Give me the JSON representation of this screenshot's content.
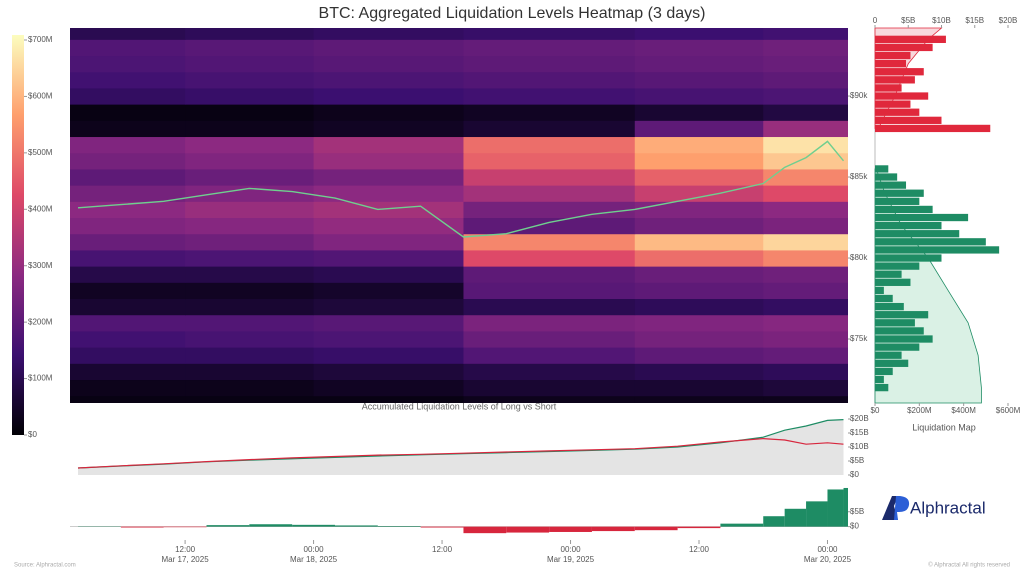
{
  "chart_data": [
    {
      "type": "heatmap",
      "title": "BTC: Aggregated Liquidation Levels Heatmap (3 days)",
      "x": [
        "2025-03-17T01:15",
        "2025-03-17T12:00",
        "2025-03-18T00:00",
        "2025-03-18T14:00",
        "2025-03-19T06:00",
        "2025-03-19T18:00"
      ],
      "xlim": [
        "2025-03-17T01:15",
        "2025-03-20T01:55"
      ],
      "y": [
        71000,
        72000,
        73000,
        74000,
        75000,
        76000,
        77000,
        78000,
        79000,
        80000,
        81000,
        82000,
        83000,
        84000,
        85000,
        86000,
        87000,
        88000,
        89000,
        90000,
        91000,
        92000,
        93000,
        94000
      ],
      "ylim": [
        71050,
        94200
      ],
      "yticks": [
        {
          "value": 75000,
          "label": "$75k"
        },
        {
          "value": 80000,
          "label": "$80k"
        },
        {
          "value": 85000,
          "label": "$85k"
        },
        {
          "value": 90000,
          "label": "$90k"
        }
      ],
      "z": [
        [
          20,
          20,
          20,
          30,
          30,
          30
        ],
        [
          30,
          30,
          40,
          60,
          60,
          70
        ],
        [
          60,
          60,
          70,
          90,
          100,
          110
        ],
        [
          120,
          120,
          130,
          180,
          200,
          210
        ],
        [
          150,
          160,
          170,
          220,
          240,
          250
        ],
        [
          180,
          180,
          190,
          250,
          260,
          270
        ],
        [
          60,
          60,
          70,
          100,
          110,
          120
        ],
        [
          40,
          40,
          50,
          190,
          200,
          210
        ],
        [
          90,
          90,
          100,
          200,
          220,
          230
        ],
        [
          160,
          170,
          180,
          420,
          480,
          520
        ],
        [
          220,
          230,
          260,
          520,
          600,
          640
        ],
        [
          260,
          270,
          290,
          200,
          230,
          250
        ],
        [
          280,
          300,
          320,
          240,
          260,
          280
        ],
        [
          240,
          260,
          280,
          320,
          380,
          420
        ],
        [
          200,
          220,
          240,
          380,
          460,
          520
        ],
        [
          240,
          260,
          300,
          460,
          560,
          620
        ],
        [
          260,
          280,
          320,
          480,
          580,
          660
        ],
        [
          30,
          30,
          40,
          60,
          200,
          300
        ],
        [
          20,
          20,
          30,
          40,
          60,
          80
        ],
        [
          120,
          130,
          140,
          150,
          160,
          170
        ],
        [
          150,
          160,
          170,
          180,
          190,
          200
        ],
        [
          170,
          180,
          190,
          200,
          210,
          220
        ],
        [
          180,
          190,
          200,
          210,
          220,
          230
        ],
        [
          100,
          110,
          120,
          130,
          140,
          150
        ]
      ],
      "zlim": [
        0,
        700
      ],
      "zticks": [
        {
          "value": 0,
          "label": "$0"
        },
        {
          "value": 100,
          "label": "$100M"
        },
        {
          "value": 200,
          "label": "$200M"
        },
        {
          "value": 300,
          "label": "$300M"
        },
        {
          "value": 400,
          "label": "$400M"
        },
        {
          "value": 500,
          "label": "$500M"
        },
        {
          "value": 600,
          "label": "$600M"
        },
        {
          "value": 700,
          "label": "$700M"
        }
      ],
      "colorscale": [
        "#000004",
        "#3b0f70",
        "#8c2981",
        "#de4968",
        "#fe9f6d",
        "#fcfdbf"
      ],
      "line": {
        "color": "#6fcf8f",
        "x": [
          "2025-03-17T02:00",
          "2025-03-17T06:00",
          "2025-03-17T10:00",
          "2025-03-17T14:00",
          "2025-03-17T18:00",
          "2025-03-17T22:00",
          "2025-03-18T02:00",
          "2025-03-18T06:00",
          "2025-03-18T10:00",
          "2025-03-18T14:00",
          "2025-03-18T18:00",
          "2025-03-18T22:00",
          "2025-03-19T02:00",
          "2025-03-19T06:00",
          "2025-03-19T10:00",
          "2025-03-19T14:00",
          "2025-03-19T18:00",
          "2025-03-19T20:00",
          "2025-03-19T22:00",
          "2025-03-20T00:00",
          "2025-03-20T01:30"
        ],
        "values": [
          83100,
          83300,
          83500,
          83900,
          84300,
          84100,
          83700,
          83000,
          83200,
          81300,
          81500,
          82200,
          82700,
          83000,
          83500,
          84000,
          84600,
          85600,
          86200,
          87200,
          86000
        ]
      }
    },
    {
      "type": "bar",
      "orientation": "horizontal",
      "title": "Liquidation Map",
      "ylim": [
        71050,
        94200
      ],
      "xlim": [
        0,
        600
      ],
      "xticks": [
        {
          "value": 0,
          "label": "$0"
        },
        {
          "value": 200,
          "label": "$200M"
        },
        {
          "value": 400,
          "label": "$400M"
        },
        {
          "value": 600,
          "label": "$600M"
        }
      ],
      "x2lim": [
        0,
        20
      ],
      "x2ticks": [
        0,
        {
          "value": 5,
          "label": "$5B"
        },
        {
          "value": 10,
          "label": "$10B"
        },
        {
          "value": 15,
          "label": "$15B"
        },
        {
          "value": 20,
          "label": "$20B"
        }
      ],
      "series": [
        {
          "color": "#e0283c",
          "y": [
            88000,
            88500,
            89000,
            89500,
            90000,
            90500,
            91000,
            91500,
            92000,
            92500,
            93000,
            93500
          ],
          "values": [
            520,
            300,
            200,
            160,
            240,
            120,
            180,
            220,
            140,
            160,
            260,
            320
          ]
        },
        {
          "color": "#1e8c64",
          "y": [
            72000,
            72500,
            73000,
            73500,
            74000,
            74500,
            75000,
            75500,
            76000,
            76500,
            77000,
            77500,
            78000,
            78500,
            79000,
            79500,
            80000,
            80500,
            81000,
            81500,
            82000,
            82500,
            83000,
            83500,
            84000,
            84500,
            85000,
            85500
          ],
          "values": [
            60,
            40,
            80,
            150,
            120,
            200,
            260,
            220,
            180,
            240,
            130,
            80,
            40,
            160,
            120,
            200,
            300,
            560,
            500,
            380,
            300,
            420,
            260,
            200,
            220,
            140,
            100,
            60
          ]
        }
      ],
      "cumulative": [
        {
          "color": "#e0283c",
          "fill": "#f7d4d8",
          "y": [
            88000,
            90000,
            92000,
            93500,
            94200
          ],
          "values": [
            0.5,
            3,
            5,
            8,
            10
          ]
        },
        {
          "color": "#1e8c64",
          "fill": "#d6f0e2",
          "y": [
            85500,
            84000,
            82000,
            80000,
            78000,
            76000,
            74000,
            72000,
            71050
          ],
          "values": [
            0.2,
            1.5,
            4,
            8,
            11,
            14,
            15.5,
            16,
            16
          ]
        }
      ]
    },
    {
      "type": "line",
      "title": "Accumulated Liquidation Levels of Long vs Short",
      "xlim": [
        "2025-03-17T01:15",
        "2025-03-20T01:55"
      ],
      "x": [
        "2025-03-17T02:00",
        "2025-03-17T06:00",
        "2025-03-17T10:00",
        "2025-03-17T14:00",
        "2025-03-17T18:00",
        "2025-03-17T22:00",
        "2025-03-18T02:00",
        "2025-03-18T06:00",
        "2025-03-18T10:00",
        "2025-03-18T14:00",
        "2025-03-18T18:00",
        "2025-03-18T22:00",
        "2025-03-19T02:00",
        "2025-03-19T06:00",
        "2025-03-19T10:00",
        "2025-03-19T14:00",
        "2025-03-19T18:00",
        "2025-03-19T20:00",
        "2025-03-19T22:00",
        "2025-03-20T00:00",
        "2025-03-20T01:30"
      ],
      "ylim": [
        0,
        20
      ],
      "yticks": [
        {
          "value": 0,
          "label": "$0"
        },
        {
          "value": 5,
          "label": "$5B"
        },
        {
          "value": 10,
          "label": "$10B"
        },
        {
          "value": 15,
          "label": "$15B"
        },
        {
          "value": 20,
          "label": "$20B"
        }
      ],
      "fill": "#e4e4e4",
      "series": [
        {
          "color": "#1e8c64",
          "values": [
            2.5,
            3.2,
            3.9,
            4.7,
            5.3,
            5.8,
            6.3,
            6.8,
            7.2,
            7.6,
            8.0,
            8.4,
            8.8,
            9.2,
            10.0,
            11.5,
            13.5,
            16.0,
            17.5,
            19.5,
            19.8
          ]
        },
        {
          "color": "#d7263d",
          "values": [
            2.5,
            3.3,
            4.0,
            4.8,
            5.5,
            6.1,
            6.6,
            7.1,
            7.4,
            7.8,
            8.2,
            8.6,
            9.0,
            9.4,
            10.3,
            11.8,
            13.0,
            12.5,
            11.0,
            11.5,
            11.0
          ]
        }
      ]
    },
    {
      "type": "bar",
      "xlim": [
        "2025-03-17T01:15",
        "2025-03-20T01:55"
      ],
      "x": [
        "2025-03-17T02:00",
        "2025-03-17T06:00",
        "2025-03-17T10:00",
        "2025-03-17T14:00",
        "2025-03-17T18:00",
        "2025-03-17T22:00",
        "2025-03-18T02:00",
        "2025-03-18T06:00",
        "2025-03-18T10:00",
        "2025-03-18T14:00",
        "2025-03-18T18:00",
        "2025-03-18T22:00",
        "2025-03-19T02:00",
        "2025-03-19T06:00",
        "2025-03-19T10:00",
        "2025-03-19T14:00",
        "2025-03-19T18:00",
        "2025-03-19T20:00",
        "2025-03-19T22:00",
        "2025-03-20T00:00",
        "2025-03-20T01:30"
      ],
      "values": [
        0.1,
        -0.3,
        -0.2,
        0.5,
        0.8,
        0.6,
        0.4,
        0.2,
        -0.3,
        -2.2,
        -2.0,
        -1.8,
        -1.5,
        -1.2,
        -0.5,
        1.0,
        3.5,
        6.0,
        8.5,
        12.5,
        13.0
      ],
      "positive_color": "#1e8c64",
      "negative_color": "#d7263d",
      "ylim": [
        -4.5,
        14
      ],
      "yticks": [
        {
          "value": 0,
          "label": "$0"
        },
        {
          "value": 5,
          "label": "$5B"
        }
      ],
      "xticks": [
        {
          "value": "2025-03-17T12:00",
          "label": "12:00\nMar 17, 2025"
        },
        {
          "value": "2025-03-18T00:00",
          "label": "00:00\nMar 18, 2025"
        },
        {
          "value": "2025-03-18T12:00",
          "label": "12:00"
        },
        {
          "value": "2025-03-19T00:00",
          "label": "00:00\nMar 19, 2025"
        },
        {
          "value": "2025-03-19T12:00",
          "label": "12:00"
        },
        {
          "value": "2025-03-20T00:00",
          "label": "00:00\nMar 20, 2025"
        }
      ]
    }
  ],
  "brand": "Alphractal",
  "source": "Source: Alphractal.com",
  "copyright": "© Alphractal All rights reserved"
}
